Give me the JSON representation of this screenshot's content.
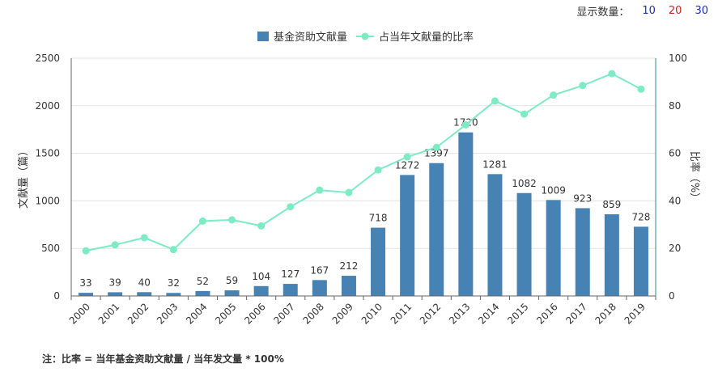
{
  "display_count": {
    "label": "显示数量：",
    "options": [
      {
        "label": "10",
        "color": "#1f2fb5"
      },
      {
        "label": "20",
        "color": "#d11f1f"
      },
      {
        "label": "30",
        "color": "#1f2fb5"
      }
    ]
  },
  "note": "注：比率 = 当年基金资助文献量 / 当年发文量 * 100%",
  "colors": {
    "bar": "#4682b4",
    "line": "#7debc4",
    "axis_right": "#2a8c8c"
  },
  "chart_data": {
    "type": "bar",
    "categories": [
      "2000",
      "2001",
      "2002",
      "2003",
      "2004",
      "2005",
      "2006",
      "2007",
      "2008",
      "2009",
      "2010",
      "2011",
      "2012",
      "2013",
      "2014",
      "2015",
      "2016",
      "2017",
      "2018",
      "2019"
    ],
    "series": [
      {
        "name": "基金资助文献量",
        "type": "bar",
        "axis": "left",
        "values": [
          33,
          39,
          40,
          32,
          52,
          59,
          104,
          127,
          167,
          212,
          718,
          1272,
          1397,
          1720,
          1281,
          1082,
          1009,
          923,
          859,
          728
        ]
      },
      {
        "name": "占当年文献量的比率",
        "type": "line",
        "axis": "right",
        "values": [
          19,
          21.5,
          24.5,
          19.5,
          31.5,
          32,
          29.5,
          37.5,
          44.5,
          43.5,
          53,
          58.5,
          62.5,
          72,
          82,
          76.5,
          84.5,
          88.5,
          93.5,
          87
        ]
      }
    ],
    "ylabel": "文献量（篇）",
    "y2label": "比率（%）",
    "ylim": [
      0,
      2500
    ],
    "yticks": [
      "0",
      "500",
      "1000",
      "1500",
      "2000",
      "2500"
    ],
    "y2lim": [
      0,
      100
    ],
    "y2ticks": [
      "0",
      "20",
      "40",
      "60",
      "80",
      "100"
    ],
    "grid": true,
    "legend": "top-center"
  }
}
